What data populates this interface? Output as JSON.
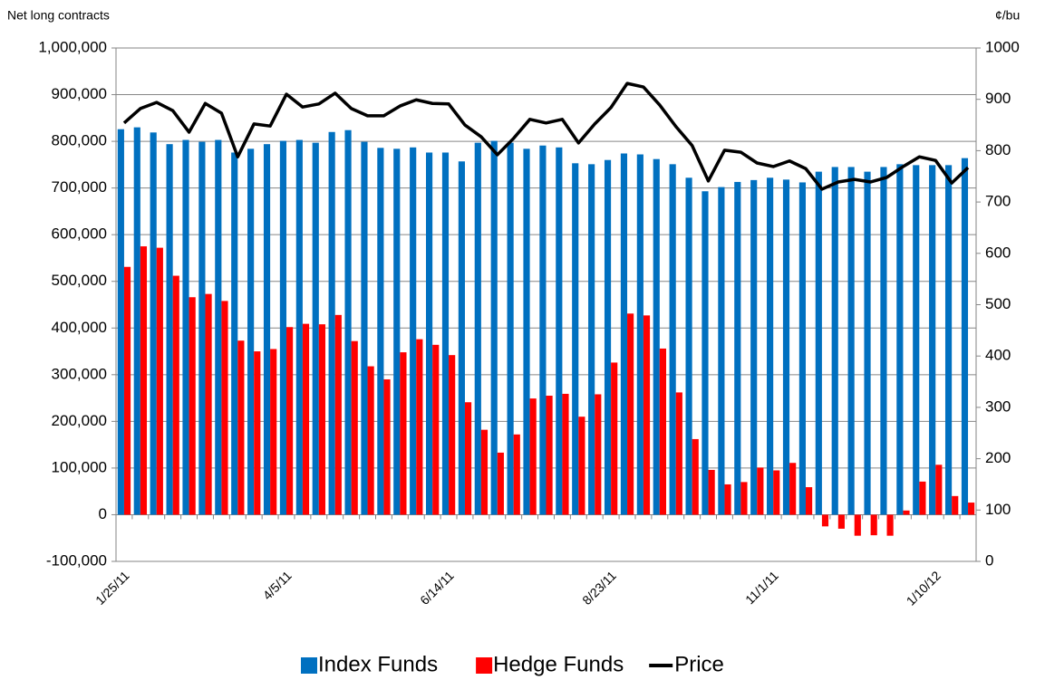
{
  "chart_data": {
    "type": "bar",
    "y_label": "Net long contracts",
    "y2_label": "¢/bu",
    "categories": [
      "1/25/11",
      null,
      null,
      null,
      null,
      null,
      null,
      null,
      null,
      null,
      "4/5/11",
      null,
      null,
      null,
      null,
      null,
      null,
      null,
      null,
      null,
      "6/14/11",
      null,
      null,
      null,
      null,
      null,
      null,
      null,
      null,
      null,
      "8/23/11",
      null,
      null,
      null,
      null,
      null,
      null,
      null,
      null,
      null,
      "11/1/11",
      null,
      null,
      null,
      null,
      null,
      null,
      null,
      null,
      null,
      "1/10/12",
      null,
      null
    ],
    "series": [
      {
        "name": "Index Funds",
        "type": "bar",
        "color": "#0070c0",
        "values": [
          826000,
          830000,
          819000,
          794000,
          803000,
          799000,
          803000,
          776000,
          784000,
          794000,
          801000,
          803000,
          797000,
          820000,
          824000,
          799000,
          786000,
          784000,
          787000,
          776000,
          776000,
          757000,
          797000,
          801000,
          797000,
          784000,
          791000,
          787000,
          753000,
          751000,
          760000,
          774000,
          772000,
          762000,
          751000,
          722000,
          693000,
          702000,
          713000,
          717000,
          722000,
          718000,
          712000,
          735000,
          745000,
          745000,
          735000,
          745000,
          751000,
          749000,
          749000,
          749000,
          764000
        ]
      },
      {
        "name": "Hedge Funds",
        "type": "bar",
        "color": "#ff0000",
        "values": [
          531000,
          575000,
          572000,
          512000,
          466000,
          473000,
          458000,
          373000,
          350000,
          355000,
          402000,
          409000,
          408000,
          428000,
          372000,
          318000,
          290000,
          348000,
          376000,
          364000,
          342000,
          241000,
          182000,
          133000,
          172000,
          249000,
          255000,
          259000,
          210000,
          258000,
          326000,
          431000,
          427000,
          356000,
          262000,
          162000,
          96000,
          65000,
          70000,
          101000,
          95000,
          111000,
          59000,
          -25000,
          -30000,
          -45000,
          -44000,
          -45000,
          9000,
          71000,
          107000,
          40000,
          26000
        ]
      },
      {
        "name": "Price",
        "type": "line",
        "axis": "y2",
        "color": "#000000",
        "values": [
          854,
          882,
          894,
          878,
          836,
          892,
          873,
          788,
          852,
          848,
          910,
          885,
          891,
          912,
          882,
          868,
          868,
          887,
          899,
          892,
          891,
          850,
          827,
          792,
          824,
          861,
          854,
          861,
          815,
          852,
          884,
          931,
          924,
          889,
          847,
          810,
          741,
          801,
          797,
          776,
          769,
          780,
          765,
          725,
          739,
          744,
          739,
          748,
          769,
          788,
          781,
          737,
          767
        ]
      }
    ],
    "ylim": [
      -100000,
      1000000
    ],
    "yticks": [
      {
        "value": -100000,
        "label": "-100,000"
      },
      0,
      {
        "value": 100000,
        "label": "100,000"
      },
      {
        "value": 200000,
        "label": "200,000"
      },
      {
        "value": 300000,
        "label": "300,000"
      },
      {
        "value": 400000,
        "label": "400,000"
      },
      {
        "value": 500000,
        "label": "500,000"
      },
      {
        "value": 600000,
        "label": "600,000"
      },
      {
        "value": 700000,
        "label": "700,000"
      },
      {
        "value": 800000,
        "label": "800,000"
      },
      {
        "value": 900000,
        "label": "900,000"
      },
      {
        "value": 1000000,
        "label": "1,000,000"
      }
    ],
    "y2lim": [
      0,
      1000
    ],
    "y2ticks": [
      0,
      100,
      200,
      300,
      400,
      500,
      600,
      700,
      800,
      900,
      1000
    ],
    "grid": true,
    "legend": "bottom"
  }
}
